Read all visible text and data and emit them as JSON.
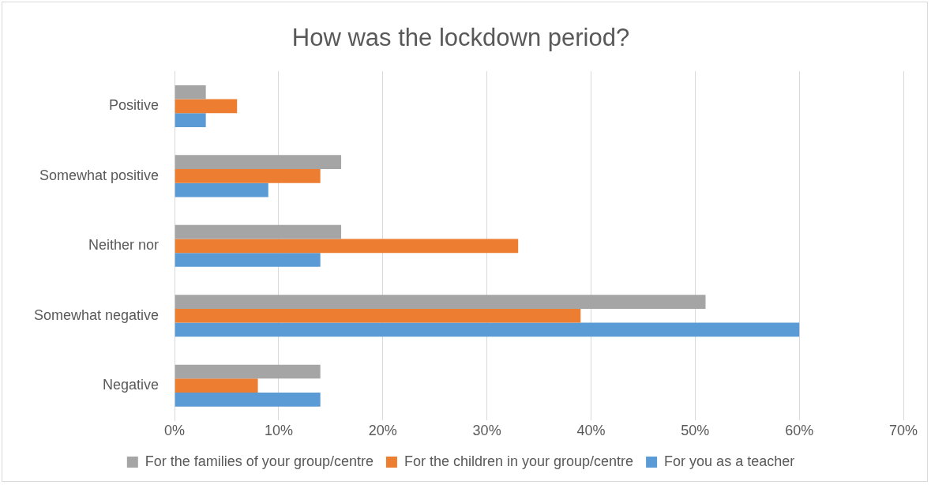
{
  "chart_data": {
    "type": "bar",
    "orientation": "horizontal",
    "title": "How was the lockdown period?",
    "categories": [
      "Positive",
      "Somewhat positive",
      "Neither nor",
      "Somewhat negative",
      "Negative"
    ],
    "series": [
      {
        "name": "For the families of your group/centre",
        "color": "#a5a5a5",
        "values": [
          3,
          16,
          16,
          51,
          14
        ]
      },
      {
        "name": "For the children in your group/centre",
        "color": "#ed7d31",
        "values": [
          6,
          14,
          33,
          39,
          8
        ]
      },
      {
        "name": "For you as a teacher",
        "color": "#5b9bd5",
        "values": [
          3,
          9,
          14,
          60,
          14
        ]
      }
    ],
    "xlim": [
      0,
      70
    ],
    "xticks": [
      {
        "value": 0,
        "label": "0%"
      },
      {
        "value": 10,
        "label": "10%"
      },
      {
        "value": 20,
        "label": "20%"
      },
      {
        "value": 30,
        "label": "30%"
      },
      {
        "value": 40,
        "label": "40%"
      },
      {
        "value": 50,
        "label": "50%"
      },
      {
        "value": 60,
        "label": "60%"
      },
      {
        "value": 70,
        "label": "70%"
      }
    ],
    "grid": "x",
    "legend": "bottom"
  }
}
